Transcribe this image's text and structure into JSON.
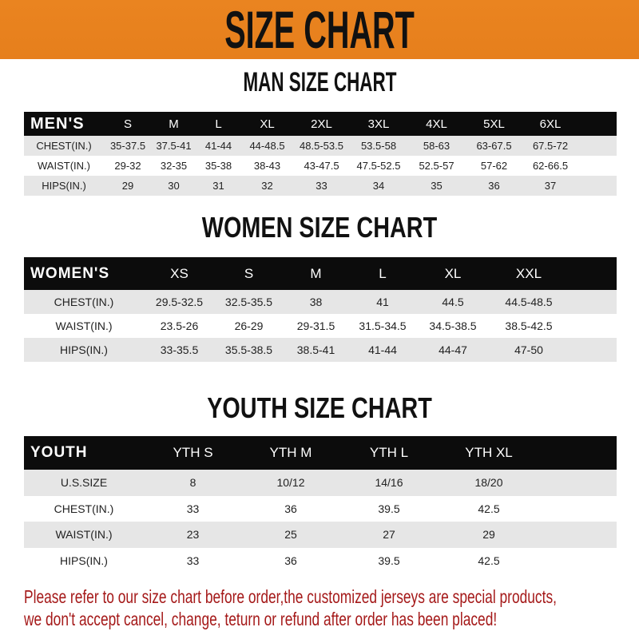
{
  "banner_title": "SIZE CHART",
  "colors": {
    "banner": "#e8821e",
    "header_row": "#0c0c0c",
    "stripe": "#e6e6e6",
    "notice": "#a51a1a"
  },
  "men": {
    "title": "MAN SIZE CHART",
    "header": [
      "MEN'S",
      "S",
      "M",
      "L",
      "XL",
      "2XL",
      "3XL",
      "4XL",
      "5XL",
      "6XL"
    ],
    "rows": [
      [
        "CHEST(IN.)",
        "35-37.5",
        "37.5-41",
        "41-44",
        "44-48.5",
        "48.5-53.5",
        "53.5-58",
        "58-63",
        "63-67.5",
        "67.5-72"
      ],
      [
        "WAIST(IN.)",
        "29-32",
        "32-35",
        "35-38",
        "38-43",
        "43-47.5",
        "47.5-52.5",
        "52.5-57",
        "57-62",
        "62-66.5"
      ],
      [
        "HIPS(IN.)",
        "29",
        "30",
        "31",
        "32",
        "33",
        "34",
        "35",
        "36",
        "37"
      ]
    ]
  },
  "women": {
    "title": "WOMEN SIZE CHART",
    "header": [
      "WOMEN'S",
      "XS",
      "S",
      "M",
      "L",
      "XL",
      "XXL"
    ],
    "rows": [
      [
        "CHEST(IN.)",
        "29.5-32.5",
        "32.5-35.5",
        "38",
        "41",
        "44.5",
        "44.5-48.5"
      ],
      [
        "WAIST(IN.)",
        "23.5-26",
        "26-29",
        "29-31.5",
        "31.5-34.5",
        "34.5-38.5",
        "38.5-42.5"
      ],
      [
        "HIPS(IN.)",
        "33-35.5",
        "35.5-38.5",
        "38.5-41",
        "41-44",
        "44-47",
        "47-50"
      ]
    ]
  },
  "youth": {
    "title": "YOUTH SIZE CHART",
    "header": [
      "YOUTH",
      "YTH S",
      "YTH M",
      "YTH L",
      "YTH XL"
    ],
    "rows": [
      [
        "U.S.SIZE",
        "8",
        "10/12",
        "14/16",
        "18/20"
      ],
      [
        "CHEST(IN.)",
        "33",
        "36",
        "39.5",
        "42.5"
      ],
      [
        "WAIST(IN.)",
        "23",
        "25",
        "27",
        "29"
      ],
      [
        "HIPS(IN.)",
        "33",
        "36",
        "39.5",
        "42.5"
      ]
    ]
  },
  "notice": {
    "line1": "Please refer to our size chart before order,the customized jerseys are special products,",
    "line2": "we don't accept cancel, change, teturn or refund after order has been placed!"
  }
}
